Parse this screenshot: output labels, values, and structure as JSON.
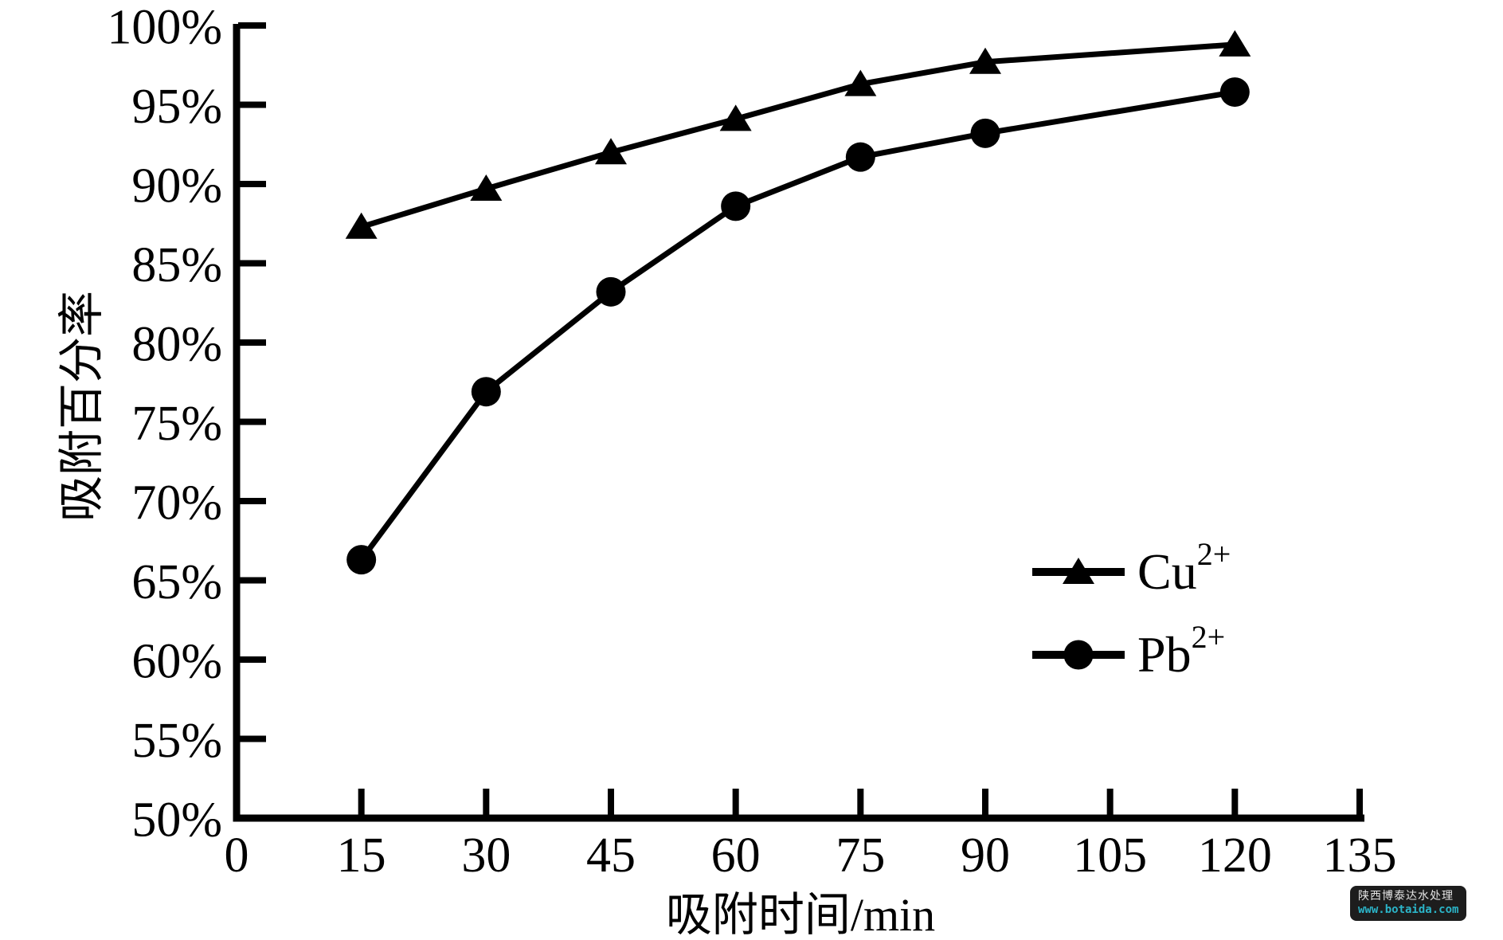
{
  "chart_data": {
    "type": "line",
    "title": "",
    "xlabel": "吸附时间/min",
    "ylabel": "吸附百分率",
    "xlim": [
      0,
      135
    ],
    "ylim": [
      50,
      100
    ],
    "x_ticks": [
      0,
      15,
      30,
      45,
      60,
      75,
      90,
      105,
      120,
      135
    ],
    "y_ticks": [
      50,
      55,
      60,
      65,
      70,
      75,
      80,
      85,
      90,
      95,
      100
    ],
    "y_tick_suffix": "%",
    "grid": false,
    "legend_position": "right-middle",
    "axis_color": "#000000",
    "series": [
      {
        "name": "Cu2+",
        "label_base": "Cu",
        "label_sup": "2+",
        "marker": "triangle",
        "color": "#000000",
        "x": [
          15,
          30,
          45,
          60,
          75,
          90,
          120
        ],
        "y": [
          87.3,
          89.7,
          92.0,
          94.1,
          96.3,
          97.7,
          98.8
        ]
      },
      {
        "name": "Pb2+",
        "label_base": "Pb",
        "label_sup": "2+",
        "marker": "circle",
        "color": "#000000",
        "x": [
          15,
          30,
          45,
          60,
          75,
          90,
          120
        ],
        "y": [
          66.3,
          76.9,
          83.2,
          88.6,
          91.7,
          93.2,
          95.8
        ]
      }
    ]
  },
  "watermark": {
    "line1": "陕西博泰达水处理",
    "line2": "www.botaida.com",
    "bg": "#1d1d1d",
    "line1_color": "#e3e3e3",
    "line2_color": "#2bb4c8"
  }
}
